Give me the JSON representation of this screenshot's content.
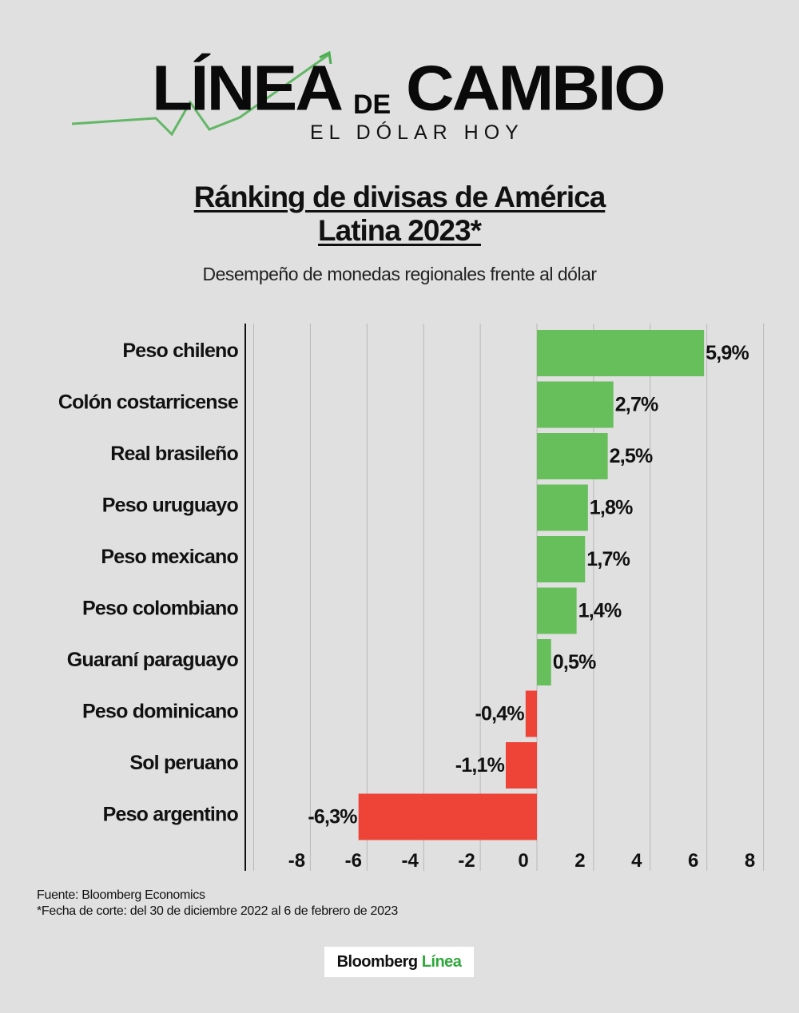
{
  "logo": {
    "word1": "LÍNEA",
    "word2": "DE",
    "word3": "CAMBIO",
    "tagline": "EL DÓLAR HOY",
    "accent": "#4caf50"
  },
  "title": "Ránking de divisas de América Latina 2023*",
  "subtitle": "Desempeño de monedas regionales frente al dólar",
  "chart_data": {
    "type": "bar",
    "orientation": "horizontal",
    "categories": [
      "Peso chileno",
      "Colón costarricense",
      "Real brasileño",
      "Peso uruguayo",
      "Peso mexicano",
      "Peso colombiano",
      "Guaraní paraguayo",
      "Peso dominicano",
      "Sol peruano",
      "Peso argentino"
    ],
    "values": [
      5.9,
      2.7,
      2.5,
      1.8,
      1.7,
      1.4,
      0.5,
      -0.4,
      -1.1,
      -6.3
    ],
    "data_labels": [
      "5,9%",
      "2,7%",
      "2,5%",
      "1,8%",
      "1,7%",
      "1,4%",
      "0,5%",
      "-0,4%",
      "-1,1%",
      "-6,3%"
    ],
    "xlim": [
      -10,
      8
    ],
    "xticks": [
      -8,
      -6,
      -4,
      -2,
      0,
      2,
      4,
      6,
      8
    ],
    "xtick_labels": [
      "-8",
      "-6",
      "-4",
      "-2",
      "0",
      "2",
      "4",
      "6",
      "8"
    ],
    "grid": true,
    "colors": {
      "positive": "#66bf5a",
      "negative": "#ee4438"
    }
  },
  "footer": {
    "source": "Fuente: Bloomberg Economics",
    "note": "*Fecha de corte: del 30 de diciembre 2022 al 6 de febrero de 2023"
  },
  "brand": {
    "part1": "Bloomberg",
    "part2": "Línea",
    "accent": "#2ea83a"
  }
}
